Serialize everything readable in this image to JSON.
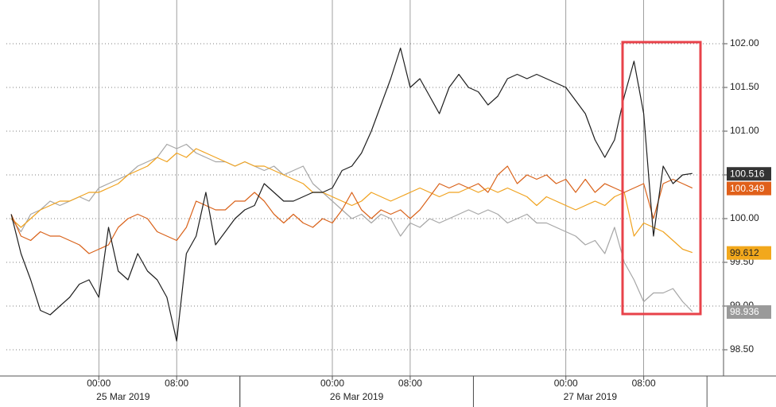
{
  "chart_data": {
    "type": "line",
    "x": [
      "2019-03-24T15:00",
      "2019-03-24T16:00",
      "2019-03-24T17:00",
      "2019-03-24T18:00",
      "2019-03-24T19:00",
      "2019-03-24T20:00",
      "2019-03-24T21:00",
      "2019-03-24T22:00",
      "2019-03-24T23:00",
      "2019-03-25T00:00",
      "2019-03-25T01:00",
      "2019-03-25T02:00",
      "2019-03-25T03:00",
      "2019-03-25T04:00",
      "2019-03-25T05:00",
      "2019-03-25T06:00",
      "2019-03-25T07:00",
      "2019-03-25T08:00",
      "2019-03-25T09:00",
      "2019-03-25T10:00",
      "2019-03-25T11:00",
      "2019-03-25T12:00",
      "2019-03-25T13:00",
      "2019-03-25T14:00",
      "2019-03-25T15:00",
      "2019-03-25T16:00",
      "2019-03-25T17:00",
      "2019-03-25T18:00",
      "2019-03-25T19:00",
      "2019-03-25T20:00",
      "2019-03-25T21:00",
      "2019-03-25T22:00",
      "2019-03-25T23:00",
      "2019-03-26T00:00",
      "2019-03-26T01:00",
      "2019-03-26T02:00",
      "2019-03-26T03:00",
      "2019-03-26T04:00",
      "2019-03-26T05:00",
      "2019-03-26T06:00",
      "2019-03-26T07:00",
      "2019-03-26T08:00",
      "2019-03-26T09:00",
      "2019-03-26T10:00",
      "2019-03-26T11:00",
      "2019-03-26T12:00",
      "2019-03-26T13:00",
      "2019-03-26T14:00",
      "2019-03-26T15:00",
      "2019-03-26T16:00",
      "2019-03-26T17:00",
      "2019-03-26T18:00",
      "2019-03-26T19:00",
      "2019-03-26T20:00",
      "2019-03-26T21:00",
      "2019-03-26T22:00",
      "2019-03-26T23:00",
      "2019-03-27T00:00",
      "2019-03-27T01:00",
      "2019-03-27T02:00",
      "2019-03-27T03:00",
      "2019-03-27T04:00",
      "2019-03-27T05:00",
      "2019-03-27T06:00",
      "2019-03-27T07:00",
      "2019-03-27T08:00",
      "2019-03-27T09:00",
      "2019-03-27T10:00",
      "2019-03-27T11:00",
      "2019-03-27T12:00",
      "2019-03-27T13:00"
    ],
    "series": [
      {
        "color": "#a6a6a6",
        "label_bg": "#9a9a9a",
        "label_fg": "#ffffff",
        "values": [
          100.0,
          99.85,
          100.05,
          100.1,
          100.2,
          100.15,
          100.2,
          100.25,
          100.2,
          100.35,
          100.4,
          100.45,
          100.5,
          100.6,
          100.65,
          100.7,
          100.85,
          100.8,
          100.85,
          100.75,
          100.7,
          100.65,
          100.65,
          100.6,
          100.65,
          100.6,
          100.55,
          100.6,
          100.5,
          100.55,
          100.6,
          100.4,
          100.3,
          100.2,
          100.1,
          100.0,
          100.05,
          99.95,
          100.05,
          100.0,
          99.8,
          99.95,
          99.9,
          100.0,
          99.95,
          100.0,
          100.05,
          100.1,
          100.05,
          100.1,
          100.05,
          99.95,
          100.0,
          100.05,
          99.95,
          99.95,
          99.9,
          99.85,
          99.8,
          99.7,
          99.75,
          99.6,
          99.9,
          99.5,
          99.3,
          99.05,
          99.15,
          99.15,
          99.2,
          99.05,
          98.936
        ]
      },
      {
        "color": "#f0a21e",
        "label_bg": "#f2a81c",
        "label_fg": "#222222",
        "values": [
          100.0,
          99.9,
          100.0,
          100.1,
          100.15,
          100.2,
          100.2,
          100.25,
          100.3,
          100.3,
          100.35,
          100.4,
          100.5,
          100.55,
          100.6,
          100.7,
          100.65,
          100.75,
          100.7,
          100.8,
          100.75,
          100.7,
          100.65,
          100.6,
          100.65,
          100.6,
          100.6,
          100.55,
          100.5,
          100.45,
          100.4,
          100.3,
          100.3,
          100.25,
          100.2,
          100.15,
          100.2,
          100.3,
          100.25,
          100.2,
          100.25,
          100.3,
          100.35,
          100.3,
          100.25,
          100.3,
          100.3,
          100.35,
          100.3,
          100.35,
          100.3,
          100.35,
          100.3,
          100.25,
          100.15,
          100.25,
          100.2,
          100.15,
          100.1,
          100.15,
          100.2,
          100.15,
          100.25,
          100.3,
          99.8,
          99.95,
          99.9,
          99.85,
          99.75,
          99.65,
          99.612
        ]
      },
      {
        "color": "#d9621a",
        "label_bg": "#e0601a",
        "label_fg": "#ffffff",
        "values": [
          100.05,
          99.8,
          99.75,
          99.85,
          99.8,
          99.8,
          99.75,
          99.7,
          99.6,
          99.65,
          99.7,
          99.9,
          100.0,
          100.05,
          100.0,
          99.85,
          99.8,
          99.75,
          99.9,
          100.2,
          100.15,
          100.1,
          100.1,
          100.2,
          100.2,
          100.3,
          100.2,
          100.05,
          99.95,
          100.05,
          99.95,
          99.9,
          100.0,
          99.95,
          100.1,
          100.3,
          100.1,
          100.0,
          100.1,
          100.05,
          100.1,
          100.0,
          100.1,
          100.25,
          100.4,
          100.35,
          100.4,
          100.35,
          100.4,
          100.3,
          100.5,
          100.6,
          100.4,
          100.5,
          100.45,
          100.5,
          100.4,
          100.45,
          100.3,
          100.45,
          100.3,
          100.4,
          100.35,
          100.3,
          100.35,
          100.4,
          100.0,
          100.4,
          100.45,
          100.4,
          100.349
        ]
      },
      {
        "color": "#1e1e1e",
        "label_bg": "#333333",
        "label_fg": "#ffffff",
        "values": [
          100.05,
          99.6,
          99.3,
          98.95,
          98.9,
          99.0,
          99.1,
          99.25,
          99.3,
          99.1,
          99.9,
          99.4,
          99.3,
          99.6,
          99.4,
          99.3,
          99.1,
          98.6,
          99.6,
          99.8,
          100.3,
          99.7,
          99.85,
          100.0,
          100.1,
          100.15,
          100.4,
          100.3,
          100.2,
          100.2,
          100.25,
          100.3,
          100.3,
          100.35,
          100.55,
          100.6,
          100.75,
          101.0,
          101.3,
          101.6,
          101.95,
          101.5,
          101.6,
          101.4,
          101.2,
          101.5,
          101.65,
          101.5,
          101.45,
          101.3,
          101.4,
          101.6,
          101.65,
          101.6,
          101.65,
          101.6,
          101.55,
          101.5,
          101.35,
          101.2,
          100.9,
          100.7,
          100.9,
          101.4,
          101.8,
          101.2,
          99.8,
          100.6,
          100.4,
          100.5,
          100.516
        ]
      }
    ],
    "xlim": [
      "2019-03-24T14:30",
      "2019-03-27T16:12"
    ],
    "xticks": [
      {
        "value": "2019-03-25T00:00",
        "label": "00:00"
      },
      {
        "value": "2019-03-25T08:00",
        "label": "08:00"
      },
      {
        "value": "2019-03-26T00:00",
        "label": "00:00"
      },
      {
        "value": "2019-03-26T08:00",
        "label": "08:00"
      },
      {
        "value": "2019-03-27T00:00",
        "label": "00:00"
      },
      {
        "value": "2019-03-27T08:00",
        "label": "08:00"
      }
    ],
    "date_labels": [
      {
        "value": "2019-03-25T02:30",
        "label": "25 Mar 2019"
      },
      {
        "value": "2019-03-26T02:30",
        "label": "26 Mar 2019"
      },
      {
        "value": "2019-03-27T02:30",
        "label": "27 Mar 2019"
      }
    ],
    "ylim": [
      98.2,
      102.5
    ],
    "yticks": [
      {
        "value": 98.5,
        "label": "98.50"
      },
      {
        "value": 99,
        "label": "99.00"
      },
      {
        "value": 99.5,
        "label": "99.50"
      },
      {
        "value": 100,
        "label": "100.00"
      },
      {
        "value": 100.5,
        "label": "100.50"
      },
      {
        "value": 101,
        "label": "101.00"
      },
      {
        "value": 101.5,
        "label": "101.50"
      },
      {
        "value": 102,
        "label": "102.00"
      }
    ],
    "grid": true
  }
}
